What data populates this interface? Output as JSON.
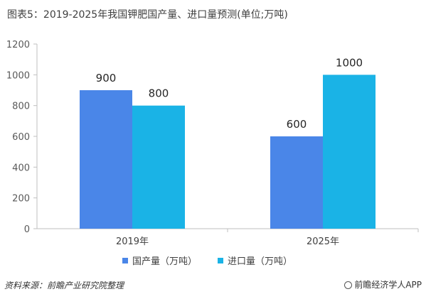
{
  "chart_data": {
    "type": "bar",
    "title": "图表5：2019-2025年我国钾肥国产量、进口量预测(单位;万吨)",
    "categories": [
      "2019年",
      "2025年"
    ],
    "series": [
      {
        "name": "国产量（万吨）",
        "values": [
          900,
          600
        ],
        "color": "#4a86e8"
      },
      {
        "name": "进口量（万吨）",
        "values": [
          800,
          1000
        ],
        "color": "#1ab3e6"
      }
    ],
    "ylim": [
      0,
      1200
    ],
    "yticks": [
      0,
      200,
      400,
      600,
      800,
      1000,
      1200
    ],
    "grid": false,
    "legend_position": "bottom"
  },
  "footer": {
    "source": "资料来源：前瞻产业研究院整理",
    "brand": "前瞻经济学人APP",
    "brand_icon": "brand-logo-icon"
  }
}
